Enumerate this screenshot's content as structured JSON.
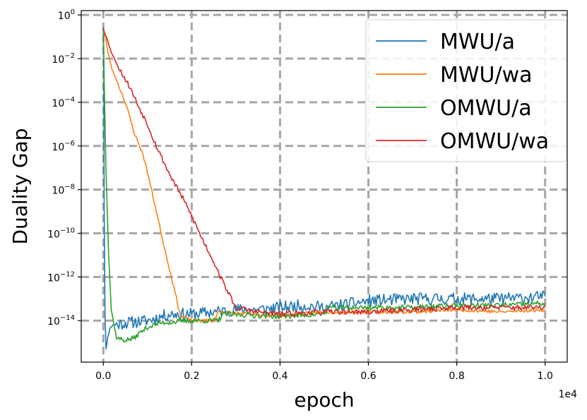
{
  "chart_data": {
    "type": "line",
    "xlabel": "epoch",
    "ylabel": "Duality Gap",
    "x_offset_label": "1e4",
    "xlim": [
      -0.05,
      1.05
    ],
    "ylim_log10": [
      -15.9,
      0.2
    ],
    "yscale": "log",
    "grid": true,
    "legend_position": "top-right",
    "x_ticks": [
      {
        "value": 0.0,
        "label": "0.0"
      },
      {
        "value": 0.2,
        "label": "0.2"
      },
      {
        "value": 0.4,
        "label": "0.4"
      },
      {
        "value": 0.6,
        "label": "0.6"
      },
      {
        "value": 0.8,
        "label": "0.8"
      },
      {
        "value": 1.0,
        "label": "1.0"
      }
    ],
    "y_ticks": [
      {
        "exp": 0,
        "base": "10",
        "sup": "0"
      },
      {
        "exp": -2,
        "base": "10",
        "sup": "−2"
      },
      {
        "exp": -4,
        "base": "10",
        "sup": "−4"
      },
      {
        "exp": -6,
        "base": "10",
        "sup": "−6"
      },
      {
        "exp": -8,
        "base": "10",
        "sup": "−8"
      },
      {
        "exp": -10,
        "base": "10",
        "sup": "−10"
      },
      {
        "exp": -12,
        "base": "10",
        "sup": "−12"
      },
      {
        "exp": -14,
        "base": "10",
        "sup": "−14"
      }
    ],
    "series": [
      {
        "name": "MWU/a",
        "color": "#1f77b4",
        "noise": 0.28,
        "seed": 11,
        "points": [
          [
            0.0,
            -0.5
          ],
          [
            0.001,
            -3.0
          ],
          [
            0.002,
            -9.0
          ],
          [
            0.004,
            -14.0
          ],
          [
            0.006,
            -15.2
          ],
          [
            0.01,
            -14.8
          ],
          [
            0.015,
            -14.3
          ],
          [
            0.025,
            -14.2
          ],
          [
            0.05,
            -14.1
          ],
          [
            0.1,
            -14.0
          ],
          [
            0.15,
            -13.7
          ],
          [
            0.2,
            -13.7
          ],
          [
            0.25,
            -13.6
          ],
          [
            0.3,
            -13.5
          ],
          [
            0.35,
            -13.5
          ],
          [
            0.4,
            -13.4
          ],
          [
            0.45,
            -13.3
          ],
          [
            0.5,
            -13.4
          ],
          [
            0.6,
            -13.1
          ],
          [
            0.7,
            -13.0
          ],
          [
            0.8,
            -13.0
          ],
          [
            0.9,
            -13.0
          ],
          [
            1.0,
            -12.9
          ]
        ]
      },
      {
        "name": "MWU/wa",
        "color": "#ff7f0e",
        "noise": 0.08,
        "seed": 23,
        "points": [
          [
            0.0,
            -0.7
          ],
          [
            0.005,
            -1.0
          ],
          [
            0.01,
            -1.7
          ],
          [
            0.02,
            -2.5
          ],
          [
            0.03,
            -3.0
          ],
          [
            0.05,
            -4.0
          ],
          [
            0.07,
            -5.4
          ],
          [
            0.09,
            -6.4
          ],
          [
            0.1,
            -7.2
          ],
          [
            0.12,
            -9.0
          ],
          [
            0.14,
            -10.8
          ],
          [
            0.16,
            -12.5
          ],
          [
            0.175,
            -13.8
          ],
          [
            0.2,
            -14.0
          ],
          [
            0.25,
            -14.0
          ],
          [
            0.26,
            -13.6
          ],
          [
            0.4,
            -13.8
          ],
          [
            0.5,
            -13.6
          ],
          [
            0.6,
            -13.6
          ],
          [
            0.7,
            -13.6
          ],
          [
            0.8,
            -13.5
          ],
          [
            0.9,
            -13.6
          ],
          [
            1.0,
            -13.5
          ]
        ]
      },
      {
        "name": "OMWU/a",
        "color": "#2ca02c",
        "noise": 0.12,
        "seed": 37,
        "points": [
          [
            0.0,
            -0.6
          ],
          [
            0.002,
            -3.0
          ],
          [
            0.006,
            -7.0
          ],
          [
            0.012,
            -11.0
          ],
          [
            0.018,
            -13.5
          ],
          [
            0.03,
            -14.8
          ],
          [
            0.05,
            -14.9
          ],
          [
            0.07,
            -14.8
          ],
          [
            0.08,
            -14.6
          ],
          [
            0.1,
            -14.3
          ],
          [
            0.13,
            -14.1
          ],
          [
            0.2,
            -14.0
          ],
          [
            0.26,
            -14.0
          ],
          [
            0.27,
            -13.7
          ],
          [
            0.4,
            -13.8
          ],
          [
            0.5,
            -13.7
          ],
          [
            0.51,
            -13.4
          ],
          [
            0.6,
            -13.4
          ],
          [
            0.7,
            -13.4
          ],
          [
            0.8,
            -13.3
          ],
          [
            0.9,
            -13.3
          ],
          [
            1.0,
            -13.2
          ]
        ]
      },
      {
        "name": "OMWU/wa",
        "color": "#d62728",
        "noise": 0.12,
        "seed": 53,
        "points": [
          [
            0.0,
            -0.6
          ],
          [
            0.01,
            -1.2
          ],
          [
            0.02,
            -1.8
          ],
          [
            0.04,
            -2.6
          ],
          [
            0.06,
            -3.3
          ],
          [
            0.08,
            -4.2
          ],
          [
            0.1,
            -5.0
          ],
          [
            0.12,
            -6.0
          ],
          [
            0.15,
            -7.3
          ],
          [
            0.18,
            -8.4
          ],
          [
            0.2,
            -9.2
          ],
          [
            0.22,
            -10.1
          ],
          [
            0.25,
            -11.3
          ],
          [
            0.27,
            -12.2
          ],
          [
            0.29,
            -13.0
          ],
          [
            0.3,
            -13.4
          ],
          [
            0.35,
            -13.6
          ],
          [
            0.4,
            -13.7
          ],
          [
            0.5,
            -13.6
          ],
          [
            0.6,
            -13.6
          ],
          [
            0.7,
            -13.5
          ],
          [
            0.8,
            -13.4
          ],
          [
            0.9,
            -13.4
          ],
          [
            1.0,
            -13.4
          ]
        ]
      }
    ]
  }
}
